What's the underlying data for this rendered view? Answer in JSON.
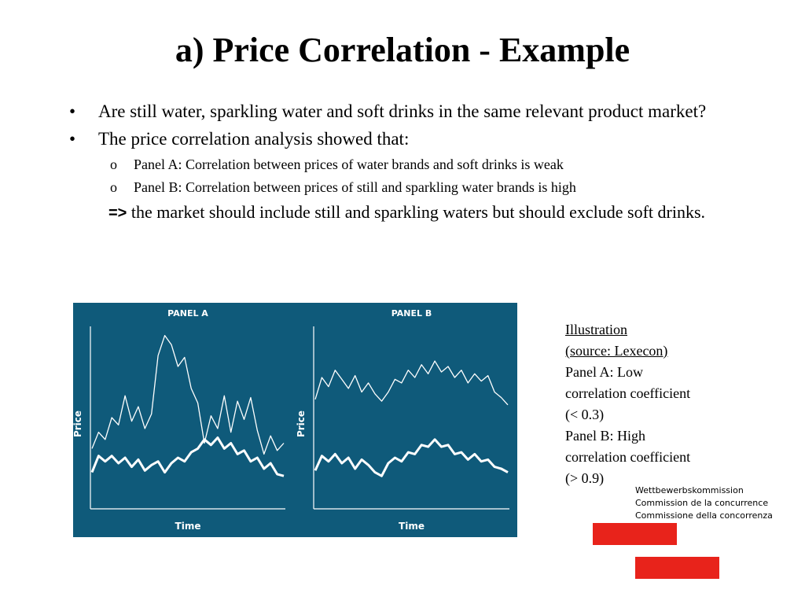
{
  "slide": {
    "title": "a) Price Correlation - Example",
    "bullets": [
      {
        "marker": "•",
        "text": "Are still water, sparkling water and soft drinks in the same relevant product market?"
      },
      {
        "marker": "•",
        "text": "The price correlation analysis showed that:"
      }
    ],
    "sub_bullets": [
      {
        "marker": "o",
        "text": "Panel A:  Correlation between prices of water brands and soft drinks is weak"
      },
      {
        "marker": "o",
        "text": "Panel B:  Correlation between prices of still and sparkling water brands is high"
      }
    ],
    "conclusion": {
      "arrow": "=>",
      "text": " the market should include still and sparkling waters but should exclude soft drinks."
    }
  },
  "caption": {
    "heading": "Illustration",
    "source": "(source: Lexecon)",
    "lines": [
      "Panel A: Low",
      "correlation coefficient",
      "(< 0.3)",
      "Panel B: High",
      "correlation coefficient",
      "(> 0.9)"
    ]
  },
  "logo": {
    "lines": [
      "Wettbewerbskommission",
      "Commission de la concurrence",
      "Commissione della concorrenza"
    ],
    "colors": {
      "flag": "#e8231b"
    }
  },
  "figure_colors": {
    "background": "#0f5a7a",
    "lines": "#ffffff"
  },
  "chart_data": [
    {
      "type": "line",
      "title": "PANEL A",
      "xlabel": "Time",
      "ylabel": "Price",
      "grid": false,
      "ylim": [
        0,
        10
      ],
      "x": [
        1,
        2,
        3,
        4,
        5,
        6,
        7,
        8,
        9,
        10,
        11,
        12,
        13,
        14,
        15,
        16,
        17,
        18,
        19,
        20,
        21,
        22,
        23,
        24,
        25,
        26,
        27,
        28,
        29,
        30
      ],
      "series": [
        {
          "values": [
            3.3,
            4.2,
            3.8,
            5.0,
            4.6,
            6.2,
            4.8,
            5.6,
            4.4,
            5.2,
            8.4,
            9.5,
            9.0,
            7.8,
            8.3,
            6.6,
            5.8,
            3.6,
            5.1,
            4.4,
            6.2,
            4.2,
            5.9,
            4.9,
            6.1,
            4.3,
            3.0,
            4.0,
            3.2,
            3.6
          ]
        },
        {
          "values": [
            2.0,
            2.9,
            2.6,
            2.9,
            2.5,
            2.8,
            2.3,
            2.7,
            2.1,
            2.4,
            2.6,
            2.0,
            2.5,
            2.8,
            2.6,
            3.1,
            3.3,
            3.8,
            3.5,
            3.9,
            3.3,
            3.6,
            3.0,
            3.2,
            2.6,
            2.8,
            2.2,
            2.5,
            1.9,
            1.8
          ]
        }
      ]
    },
    {
      "type": "line",
      "title": "PANEL B",
      "xlabel": "Time",
      "ylabel": "Price",
      "grid": false,
      "ylim": [
        0,
        10
      ],
      "x": [
        1,
        2,
        3,
        4,
        5,
        6,
        7,
        8,
        9,
        10,
        11,
        12,
        13,
        14,
        15,
        16,
        17,
        18,
        19,
        20,
        21,
        22,
        23,
        24,
        25,
        26,
        27,
        28,
        29,
        30
      ],
      "series": [
        {
          "values": [
            6.0,
            7.2,
            6.7,
            7.6,
            7.1,
            6.6,
            7.3,
            6.4,
            6.9,
            6.3,
            5.9,
            6.4,
            7.1,
            6.9,
            7.6,
            7.2,
            7.9,
            7.4,
            8.1,
            7.5,
            7.8,
            7.2,
            7.6,
            6.9,
            7.4,
            7.0,
            7.3,
            6.4,
            6.1,
            5.7
          ]
        },
        {
          "values": [
            2.1,
            2.9,
            2.6,
            3.0,
            2.5,
            2.8,
            2.2,
            2.7,
            2.4,
            2.0,
            1.8,
            2.5,
            2.8,
            2.6,
            3.1,
            3.0,
            3.5,
            3.4,
            3.8,
            3.4,
            3.5,
            3.0,
            3.1,
            2.7,
            3.0,
            2.6,
            2.7,
            2.3,
            2.2,
            2.0
          ]
        }
      ]
    }
  ]
}
